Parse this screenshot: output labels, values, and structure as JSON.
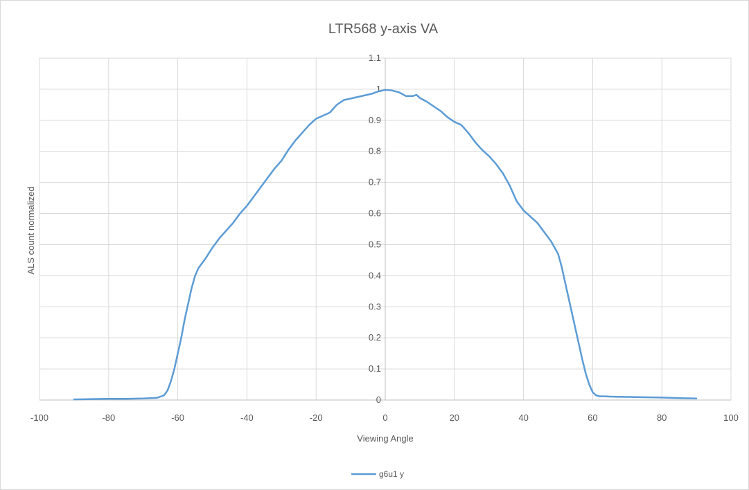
{
  "chart_data": {
    "type": "line",
    "title": "LTR568 y-axis VA",
    "xlabel": "Viewing Angle",
    "ylabel": "ALS count normalized",
    "xlim": [
      -100,
      100
    ],
    "ylim": [
      0,
      1.1
    ],
    "x_ticks": [
      "-100",
      "-80",
      "-60",
      "-40",
      "-20",
      "0",
      "20",
      "40",
      "60",
      "80",
      "100"
    ],
    "y_ticks": [
      "0",
      "0.1",
      "0.2",
      "0.3",
      "0.4",
      "0.5",
      "0.6",
      "0.7",
      "0.8",
      "0.9",
      "1",
      "1.1"
    ],
    "grid": true,
    "legend_position": "bottom",
    "series": [
      {
        "name": "g6u1 y",
        "color": "#5b9bd5",
        "x": [
          -90,
          -85,
          -80,
          -75,
          -70,
          -66,
          -64,
          -63,
          -62,
          -61,
          -60,
          -59,
          -58,
          -57,
          -56,
          -55,
          -54,
          -53,
          -52,
          -50,
          -48,
          -46,
          -44,
          -42,
          -40,
          -38,
          -36,
          -34,
          -32,
          -30,
          -28,
          -26,
          -24,
          -22,
          -20,
          -18,
          -16,
          -14,
          -12,
          -10,
          -8,
          -6,
          -4,
          -2,
          0,
          2,
          4,
          6,
          8,
          9,
          10,
          12,
          14,
          16,
          18,
          20,
          22,
          24,
          26,
          28,
          30,
          32,
          34,
          36,
          38,
          40,
          42,
          44,
          46,
          48,
          50,
          51,
          52,
          53,
          54,
          55,
          56,
          57,
          58,
          59,
          60,
          61,
          62,
          63,
          65,
          70,
          75,
          80,
          85,
          90
        ],
        "y": [
          0.002,
          0.003,
          0.004,
          0.004,
          0.005,
          0.007,
          0.015,
          0.03,
          0.06,
          0.1,
          0.15,
          0.2,
          0.26,
          0.31,
          0.36,
          0.4,
          0.425,
          0.44,
          0.455,
          0.49,
          0.52,
          0.545,
          0.57,
          0.6,
          0.625,
          0.655,
          0.685,
          0.715,
          0.745,
          0.77,
          0.805,
          0.835,
          0.86,
          0.885,
          0.905,
          0.915,
          0.925,
          0.95,
          0.965,
          0.97,
          0.975,
          0.98,
          0.985,
          0.993,
          0.998,
          0.996,
          0.99,
          0.978,
          0.978,
          0.982,
          0.972,
          0.96,
          0.945,
          0.93,
          0.91,
          0.895,
          0.885,
          0.86,
          0.83,
          0.805,
          0.785,
          0.76,
          0.73,
          0.69,
          0.64,
          0.61,
          0.59,
          0.57,
          0.54,
          0.51,
          0.47,
          0.43,
          0.38,
          0.33,
          0.28,
          0.23,
          0.18,
          0.13,
          0.085,
          0.05,
          0.025,
          0.015,
          0.012,
          0.012,
          0.011,
          0.01,
          0.009,
          0.008,
          0.006,
          0.005
        ]
      }
    ]
  }
}
